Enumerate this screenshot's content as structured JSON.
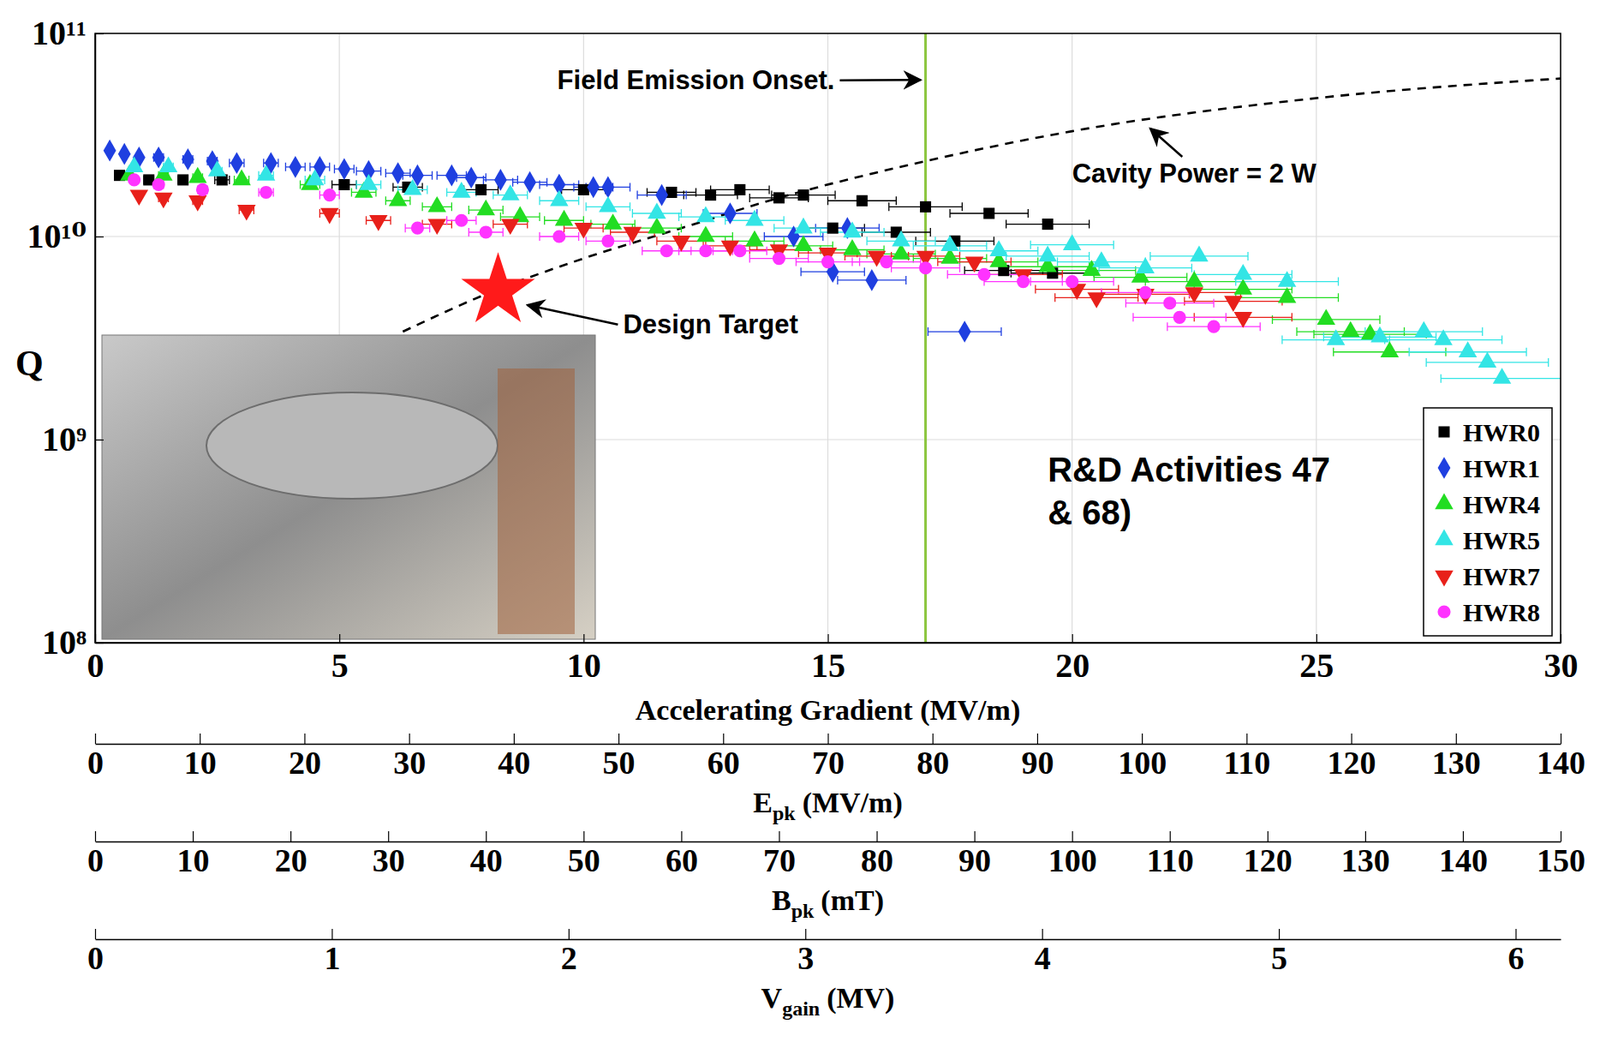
{
  "chart_data": {
    "type": "scatter",
    "xlabel": "Accelerating Gradient (MV/m)",
    "ylabel": "Q",
    "xlim": [
      0,
      30
    ],
    "xticks": [
      0,
      5,
      10,
      15,
      20,
      25,
      30
    ],
    "ylim": [
      100000000.0,
      100000000000.0
    ],
    "yticks": [
      {
        "value": 100000000.0,
        "label": "10⁸"
      },
      {
        "value": 1000000000.0,
        "label": "10⁹"
      },
      {
        "value": 10000000000.0,
        "label": "10¹⁰"
      },
      {
        "value": 100000000000.0,
        "label": "10¹¹"
      }
    ],
    "log": "y",
    "grid": true,
    "legend": "lower right",
    "series": [
      {
        "name": "HWR0",
        "color": "#000000",
        "marker": "square",
        "x": [
          0.5,
          1.1,
          1.8,
          2.6,
          5.1,
          6.4,
          7.9,
          10.0,
          11.8,
          12.6,
          13.2,
          14.0,
          14.5,
          15.1,
          15.7,
          16.4,
          17.0,
          17.6,
          18.3,
          18.6,
          19.5,
          19.6
        ],
        "values": [
          20000000000.0,
          19000000000.0,
          19000000000.0,
          19000000000.0,
          18000000000.0,
          17500000000.0,
          17000000000.0,
          17000000000.0,
          16500000000.0,
          16000000000.0,
          17000000000.0,
          15500000000.0,
          16000000000.0,
          11000000000.0,
          15000000000.0,
          10500000000.0,
          14000000000.0,
          9500000000.0,
          13000000000.0,
          6800000000.0,
          11500000000.0,
          6600000000.0
        ],
        "x_err": [
          0.1,
          0.1,
          0.1,
          0.15,
          0.25,
          0.3,
          0.35,
          0.45,
          0.5,
          0.55,
          0.6,
          0.6,
          0.65,
          0.65,
          0.7,
          0.7,
          0.75,
          0.8,
          0.8,
          0.8,
          0.85,
          0.85
        ]
      },
      {
        "name": "HWR1",
        "color": "#1f3fe0",
        "marker": "diamond",
        "x": [
          0.3,
          0.6,
          0.9,
          1.3,
          1.9,
          2.4,
          2.9,
          3.6,
          4.1,
          4.6,
          5.1,
          5.6,
          6.2,
          6.6,
          7.3,
          7.7,
          8.3,
          8.9,
          9.5,
          10.2,
          10.5,
          11.6,
          13.0,
          14.3,
          15.1,
          15.4,
          15.9,
          17.8
        ],
        "values": [
          26500000000.0,
          25500000000.0,
          24500000000.0,
          24500000000.0,
          24000000000.0,
          23500000000.0,
          23000000000.0,
          23000000000.0,
          22000000000.0,
          22000000000.0,
          21500000000.0,
          21000000000.0,
          20500000000.0,
          20000000000.0,
          20000000000.0,
          19500000000.0,
          19000000000.0,
          18500000000.0,
          18000000000.0,
          17500000000.0,
          17500000000.0,
          16000000000.0,
          13000000000.0,
          10000000000.0,
          6700000000.0,
          11000000000.0,
          6100000000.0,
          3400000000.0
        ],
        "x_err": [
          0.05,
          0.05,
          0.05,
          0.1,
          0.1,
          0.1,
          0.15,
          0.15,
          0.2,
          0.2,
          0.2,
          0.25,
          0.25,
          0.3,
          0.3,
          0.3,
          0.35,
          0.35,
          0.4,
          0.4,
          0.45,
          0.5,
          0.55,
          0.6,
          0.65,
          0.65,
          0.7,
          0.75
        ]
      },
      {
        "name": "HWR4",
        "color": "#22dd22",
        "marker": "triangle-up",
        "x": [
          0.7,
          1.4,
          2.1,
          3.0,
          4.4,
          5.5,
          6.2,
          7.0,
          8.0,
          8.7,
          9.6,
          10.6,
          11.5,
          12.5,
          13.5,
          14.5,
          15.5,
          16.5,
          17.5,
          18.5,
          19.5,
          20.4,
          21.4,
          22.5,
          23.5,
          24.4,
          25.2,
          25.7,
          26.1,
          26.5
        ],
        "values": [
          20000000000.0,
          20000000000.0,
          19500000000.0,
          19000000000.0,
          18000000000.0,
          16500000000.0,
          15000000000.0,
          14000000000.0,
          13500000000.0,
          12500000000.0,
          12000000000.0,
          11500000000.0,
          11000000000.0,
          10000000000.0,
          9500000000.0,
          9000000000.0,
          8600000000.0,
          8200000000.0,
          7800000000.0,
          7500000000.0,
          7100000000.0,
          6800000000.0,
          6300000000.0,
          6000000000.0,
          5500000000.0,
          5000000000.0,
          3900000000.0,
          3400000000.0,
          3300000000.0,
          2700000000.0
        ],
        "x_err": [
          0.05,
          0.1,
          0.1,
          0.15,
          0.2,
          0.25,
          0.25,
          0.3,
          0.35,
          0.4,
          0.4,
          0.45,
          0.5,
          0.55,
          0.6,
          0.6,
          0.65,
          0.7,
          0.75,
          0.8,
          0.85,
          0.9,
          0.95,
          1.0,
          1.0,
          1.05,
          1.1,
          1.1,
          1.15,
          1.15
        ]
      },
      {
        "name": "HWR5",
        "color": "#33e5e5",
        "marker": "triangle-up",
        "x": [
          0.8,
          1.5,
          2.5,
          3.5,
          4.5,
          5.6,
          6.5,
          7.5,
          8.5,
          9.5,
          10.5,
          11.5,
          12.5,
          13.5,
          14.5,
          15.5,
          16.5,
          17.5,
          18.5,
          19.5,
          20.0,
          20.6,
          21.5,
          22.6,
          23.5,
          24.4,
          25.4,
          26.3,
          27.2,
          27.6,
          28.1,
          28.5,
          28.8
        ],
        "values": [
          22000000000.0,
          22000000000.0,
          21000000000.0,
          20000000000.0,
          19000000000.0,
          18000000000.0,
          17000000000.0,
          16500000000.0,
          16000000000.0,
          15000000000.0,
          14000000000.0,
          13000000000.0,
          12500000000.0,
          12000000000.0,
          11000000000.0,
          10500000000.0,
          9500000000.0,
          9000000000.0,
          8500000000.0,
          8000000000.0,
          9100000000.0,
          7500000000.0,
          7000000000.0,
          8000000000.0,
          6500000000.0,
          6000000000.0,
          3100000000.0,
          3200000000.0,
          3400000000.0,
          3100000000.0,
          2700000000.0,
          2400000000.0,
          2000000000.0
        ],
        "x_err": [
          0.05,
          0.1,
          0.1,
          0.15,
          0.2,
          0.25,
          0.3,
          0.3,
          0.35,
          0.4,
          0.45,
          0.5,
          0.55,
          0.6,
          0.6,
          0.65,
          0.7,
          0.75,
          0.8,
          0.85,
          0.85,
          0.9,
          0.95,
          1.0,
          1.0,
          1.05,
          1.1,
          1.15,
          1.2,
          1.2,
          1.2,
          1.25,
          1.25
        ]
      },
      {
        "name": "HWR7",
        "color": "#e8201a",
        "marker": "triangle-down",
        "x": [
          0.9,
          1.4,
          2.1,
          3.1,
          4.8,
          5.8,
          7.0,
          8.5,
          10.0,
          11.0,
          12.0,
          13.0,
          14.0,
          15.0,
          16.0,
          17.0,
          18.0,
          19.0,
          20.1,
          20.5,
          21.5,
          22.5,
          23.3,
          23.5
        ],
        "values": [
          16000000000.0,
          15500000000.0,
          15000000000.0,
          13500000000.0,
          13000000000.0,
          12000000000.0,
          11500000000.0,
          11500000000.0,
          11000000000.0,
          10500000000.0,
          9500000000.0,
          9000000000.0,
          8600000000.0,
          8300000000.0,
          8000000000.0,
          8000000000.0,
          7500000000.0,
          6500000000.0,
          5500000000.0,
          5000000000.0,
          5200000000.0,
          5300000000.0,
          4800000000.0,
          4000000000.0
        ],
        "x_err": [
          0.05,
          0.1,
          0.1,
          0.15,
          0.2,
          0.25,
          0.3,
          0.35,
          0.4,
          0.45,
          0.5,
          0.55,
          0.6,
          0.6,
          0.65,
          0.7,
          0.75,
          0.8,
          0.85,
          0.85,
          0.9,
          0.95,
          1.0,
          1.0
        ]
      },
      {
        "name": "HWR8",
        "color": "#ff33ff",
        "marker": "circle",
        "x": [
          0.8,
          1.3,
          2.2,
          3.5,
          4.8,
          6.6,
          7.5,
          8.0,
          9.5,
          10.5,
          11.7,
          12.5,
          13.2,
          14.0,
          15.0,
          16.2,
          17.0,
          18.2,
          19.0,
          20.0,
          21.5,
          22.0,
          22.2,
          22.9
        ],
        "values": [
          19000000000.0,
          18000000000.0,
          17000000000.0,
          16500000000.0,
          16000000000.0,
          11000000000.0,
          12000000000.0,
          10500000000.0,
          10000000000.0,
          9500000000.0,
          8500000000.0,
          8500000000.0,
          8500000000.0,
          7800000000.0,
          7500000000.0,
          7500000000.0,
          7000000000.0,
          6500000000.0,
          6000000000.0,
          6000000000.0,
          5300000000.0,
          4700000000.0,
          4000000000.0,
          3600000000.0
        ],
        "x_err": [
          0.05,
          0.1,
          0.1,
          0.15,
          0.2,
          0.25,
          0.3,
          0.35,
          0.4,
          0.45,
          0.5,
          0.55,
          0.55,
          0.6,
          0.65,
          0.7,
          0.7,
          0.75,
          0.8,
          0.85,
          0.9,
          0.9,
          0.95,
          0.95
        ]
      }
    ],
    "power_curve": {
      "color": "#000000",
      "line_style": "dashed",
      "x": [
        6.3,
        8.0,
        10.0,
        12.0,
        14.0,
        17.0,
        20.0,
        25.0,
        30.0
      ],
      "values": [
        3400000000.0,
        5200000000.0,
        7800000000.0,
        11000000000.0,
        15500000000.0,
        23500000000.0,
        33000000000.0,
        48000000000.0,
        60000000000.0
      ]
    },
    "field_emission_onset": {
      "x": 17,
      "color": "#8cc63f"
    },
    "design_target": {
      "x": 8.25,
      "y": 5400000000.0,
      "color": "#ff1a1a",
      "marker": "star"
    },
    "annotations": [
      {
        "text": "Field Emission Onset.",
        "x": 12.3,
        "y": 59000000000.0,
        "arrow_x": 16.9,
        "arrow_y": 59000000000.0
      },
      {
        "text": "Cavity Power = 2 W",
        "x": 22.5,
        "y": 20500000000.0,
        "arrow_x": 21.6,
        "arrow_y": 34000000000.0
      },
      {
        "text": "Design Target",
        "x": 12.6,
        "y": 3700000000.0,
        "arrow_x": 8.85,
        "arrow_y": 4600000000.0
      }
    ],
    "text_block": {
      "lines": [
        "R&D Activities 47",
        "& 68)"
      ],
      "x": 19.5,
      "y": 620000000.0
    },
    "secondary_axes": [
      {
        "label": "E",
        "label_sub": "pk",
        "label_unit": "(MV/m)",
        "lim": [
          0,
          140
        ],
        "ticks": [
          0,
          10,
          20,
          30,
          40,
          50,
          60,
          70,
          80,
          90,
          100,
          110,
          120,
          130,
          140
        ]
      },
      {
        "label": "B",
        "label_sub": "pk",
        "label_unit": "(mT)",
        "lim": [
          0,
          150
        ],
        "ticks": [
          0,
          10,
          20,
          30,
          40,
          50,
          60,
          70,
          80,
          90,
          100,
          110,
          120,
          130,
          140,
          150
        ]
      },
      {
        "label": "V",
        "label_sub": "gain",
        "label_unit": "(MV)",
        "lim": [
          0,
          6.19
        ],
        "ticks": [
          0,
          1,
          2,
          3,
          4,
          5,
          6
        ]
      }
    ]
  }
}
